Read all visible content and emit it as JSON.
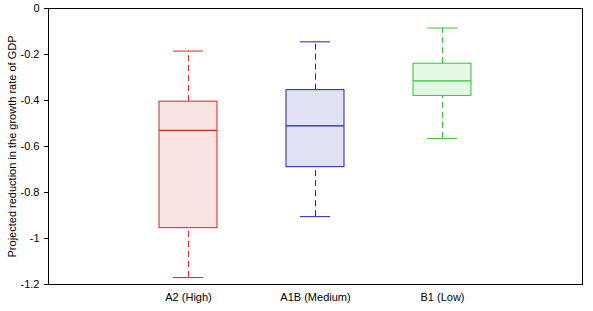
{
  "chart_data": {
    "type": "box",
    "ylabel": "Projected reduction in the growth rate of GDP",
    "categories": [
      "A2 (High)",
      "A1B (Medium)",
      "B1 (Low)"
    ],
    "whisker_low": [
      -1.17,
      -0.905,
      -0.565
    ],
    "q1": [
      -0.955,
      -0.69,
      -0.38
    ],
    "median": [
      -0.53,
      -0.51,
      -0.315
    ],
    "q3": [
      -0.405,
      -0.355,
      -0.24
    ],
    "whisker_high": [
      -0.185,
      -0.145,
      -0.085
    ],
    "colors": [
      "#d02828",
      "#2020b0",
      "#30c830"
    ],
    "ylim": [
      -1.2,
      0
    ],
    "yticks": [
      -1.2,
      -1,
      -0.8,
      -0.6,
      -0.4,
      -0.2,
      0
    ],
    "line_style": "dashed",
    "grid": false
  }
}
